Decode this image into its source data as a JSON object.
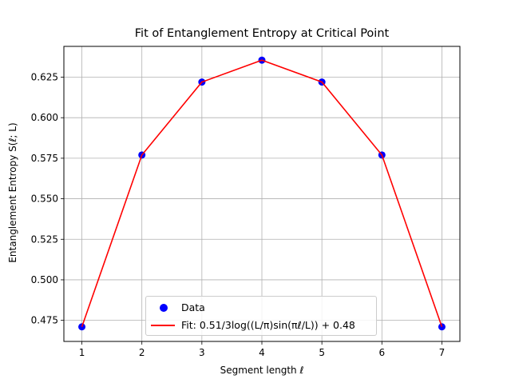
{
  "chart_data": {
    "type": "line",
    "title": "Fit of Entanglement Entropy at Critical Point",
    "xlabel": "Segment length ℓ",
    "ylabel": "Entanglement Entropy S(ℓ; L)",
    "xlim": [
      0.7,
      7.3
    ],
    "ylim": [
      0.462,
      0.644
    ],
    "xticks": [
      1,
      2,
      3,
      4,
      5,
      6,
      7
    ],
    "yticks": [
      0.475,
      0.5,
      0.525,
      0.55,
      0.575,
      0.6,
      0.625
    ],
    "ytick_labels": [
      "0.475",
      "0.500",
      "0.525",
      "0.550",
      "0.575",
      "0.600",
      "0.625"
    ],
    "grid": true,
    "legend_position": "lower center",
    "series": [
      {
        "name": "Data",
        "kind": "scatter",
        "color": "#0000ff",
        "x": [
          1,
          2,
          3,
          4,
          5,
          6,
          7
        ],
        "y": [
          0.471,
          0.577,
          0.622,
          0.6355,
          0.622,
          0.577,
          0.471
        ]
      },
      {
        "name": "Fit: 0.51/3log((L/π)sin(πℓ/L)) + 0.48",
        "kind": "line",
        "color": "#ff0000",
        "x": [
          1,
          2,
          3,
          4,
          5,
          6,
          7
        ],
        "y": [
          0.471,
          0.577,
          0.622,
          0.6355,
          0.622,
          0.577,
          0.471
        ]
      }
    ]
  }
}
